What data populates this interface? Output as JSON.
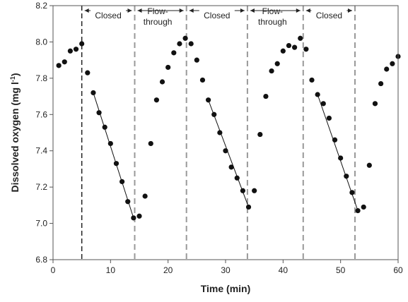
{
  "chart_data": {
    "type": "scatter",
    "title": "",
    "xlabel": "Time (min)",
    "ylabel_main": "Dissolved oxygen (mg l",
    "ylabel_sup": "-1",
    "ylabel_close": ")",
    "xlim": [
      0,
      60
    ],
    "ylim": [
      6.8,
      8.2
    ],
    "xticks": [
      0,
      10,
      20,
      30,
      40,
      50,
      60
    ],
    "yticks": [
      "6.8",
      "7.0",
      "7.2",
      "7.4",
      "7.6",
      "7.8",
      "8.0",
      "8.2"
    ],
    "grid": false,
    "legend": "none",
    "colors": {
      "points": "#111111",
      "closed_boundary": "#222222",
      "flow_boundary": "#999999"
    },
    "boundaries": [
      {
        "x": 5,
        "style": "black-dashed"
      },
      {
        "x": 14.2,
        "style": "gray-dashed"
      },
      {
        "x": 23.2,
        "style": "gray-dashed"
      },
      {
        "x": 33.8,
        "style": "gray-dashed"
      },
      {
        "x": 43.5,
        "style": "gray-dashed"
      },
      {
        "x": 52.5,
        "style": "gray-dashed"
      }
    ],
    "phases": [
      {
        "label_lines": [
          "Closed"
        ],
        "x_start": 5,
        "x_end": 14.2
      },
      {
        "label_lines": [
          "Flow-",
          "through"
        ],
        "x_start": 14.2,
        "x_end": 23.2
      },
      {
        "label_lines": [
          "Closed"
        ],
        "x_start": 23.2,
        "x_end": 33.8
      },
      {
        "label_lines": [
          "Flow-",
          "through"
        ],
        "x_start": 33.8,
        "x_end": 43.5
      },
      {
        "label_lines": [
          "Closed"
        ],
        "x_start": 43.5,
        "x_end": 52.5
      }
    ],
    "points": [
      [
        1,
        7.87
      ],
      [
        2,
        7.89
      ],
      [
        3,
        7.95
      ],
      [
        4,
        7.96
      ],
      [
        5,
        7.99
      ],
      [
        6,
        7.83
      ],
      [
        7,
        7.72
      ],
      [
        8,
        7.61
      ],
      [
        9,
        7.53
      ],
      [
        10,
        7.44
      ],
      [
        11,
        7.33
      ],
      [
        12,
        7.23
      ],
      [
        13,
        7.12
      ],
      [
        14,
        7.03
      ],
      [
        15,
        7.04
      ],
      [
        16,
        7.15
      ],
      [
        17,
        7.44
      ],
      [
        18,
        7.68
      ],
      [
        19,
        7.78
      ],
      [
        20,
        7.86
      ],
      [
        21,
        7.94
      ],
      [
        22,
        7.99
      ],
      [
        23,
        8.02
      ],
      [
        24,
        7.99
      ],
      [
        25,
        7.9
      ],
      [
        26,
        7.79
      ],
      [
        27,
        7.68
      ],
      [
        28,
        7.6
      ],
      [
        29,
        7.5
      ],
      [
        30,
        7.4
      ],
      [
        31,
        7.31
      ],
      [
        32,
        7.25
      ],
      [
        33,
        7.18
      ],
      [
        34,
        7.09
      ],
      [
        35,
        7.18
      ],
      [
        36,
        7.49
      ],
      [
        37,
        7.7
      ],
      [
        38,
        7.84
      ],
      [
        39,
        7.88
      ],
      [
        40,
        7.95
      ],
      [
        41,
        7.98
      ],
      [
        42,
        7.97
      ],
      [
        43,
        8.02
      ],
      [
        44,
        7.96
      ],
      [
        45,
        7.79
      ],
      [
        46,
        7.71
      ],
      [
        47,
        7.66
      ],
      [
        48,
        7.58
      ],
      [
        49,
        7.46
      ],
      [
        50,
        7.36
      ],
      [
        51,
        7.26
      ],
      [
        52,
        7.17
      ],
      [
        53,
        7.07
      ],
      [
        54,
        7.09
      ],
      [
        55,
        7.32
      ],
      [
        56,
        7.66
      ],
      [
        57,
        7.77
      ],
      [
        58,
        7.85
      ],
      [
        59,
        7.88
      ],
      [
        60,
        7.92
      ]
    ],
    "regression_lines": [
      {
        "x": [
          7,
          14
        ],
        "y": [
          7.72,
          7.03
        ]
      },
      {
        "x": [
          27,
          34
        ],
        "y": [
          7.68,
          7.09
        ]
      },
      {
        "x": [
          46,
          53
        ],
        "y": [
          7.71,
          7.07
        ]
      }
    ]
  }
}
